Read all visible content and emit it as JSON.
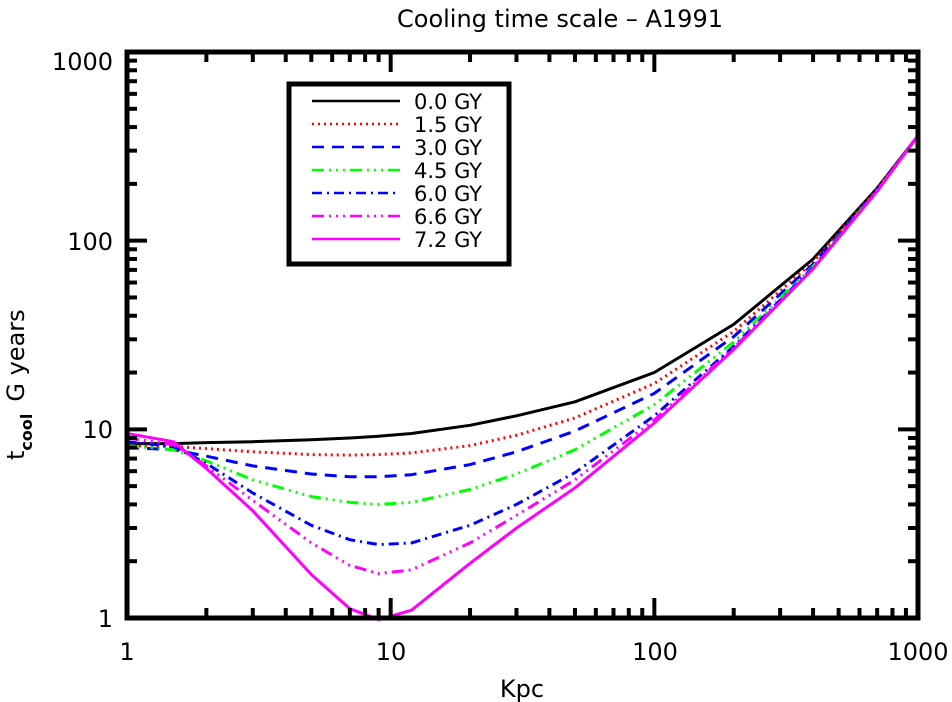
{
  "chart_data": {
    "type": "line",
    "title": "Cooling time scale  –  A1991",
    "xlabel": "Kpc",
    "ylabel": {
      "main": "t",
      "subscript": "cool",
      "suffix": "G years"
    },
    "xscale": "log",
    "yscale": "log",
    "xlim": [
      1,
      1000
    ],
    "ylim": [
      1,
      1000
    ],
    "grid": false,
    "legend_position": "upper-left (boxed)",
    "x_tick_labels": [
      "1",
      "10",
      "100",
      "1000"
    ],
    "y_tick_labels": [
      "1",
      "10",
      "100",
      "1000"
    ],
    "x": [
      1,
      1.5,
      2,
      3,
      5,
      7,
      9,
      12,
      20,
      30,
      50,
      100,
      200,
      400,
      700,
      1000
    ],
    "series": [
      {
        "name": "0.0 GY",
        "color": "#000000",
        "dash": "solid",
        "values": [
          8.4,
          8.4,
          8.5,
          8.6,
          8.8,
          9.0,
          9.2,
          9.5,
          10.5,
          11.8,
          14.0,
          20,
          36,
          80,
          190,
          360
        ]
      },
      {
        "name": "1.5 GY",
        "color": "#ff0000",
        "dash": "dotted",
        "values": [
          8.2,
          8.1,
          7.9,
          7.6,
          7.35,
          7.3,
          7.35,
          7.5,
          8.2,
          9.3,
          11.5,
          17.5,
          33,
          77,
          188,
          360
        ]
      },
      {
        "name": "3.0 GY",
        "color": "#0000ff",
        "dash": "dashed",
        "values": [
          8.0,
          7.8,
          7.2,
          6.4,
          5.8,
          5.6,
          5.6,
          5.75,
          6.5,
          7.6,
          9.8,
          15.5,
          31,
          75,
          186,
          360
        ]
      },
      {
        "name": "4.5 GY",
        "color": "#00ff00",
        "dash": "dash-dot-dot",
        "values": [
          8.2,
          7.8,
          6.8,
          5.4,
          4.4,
          4.1,
          4.0,
          4.1,
          4.8,
          5.8,
          7.8,
          13.5,
          29,
          73,
          185,
          360
        ]
      },
      {
        "name": "6.0 GY",
        "color": "#0000ff",
        "dash": "dash-dot",
        "values": [
          8.6,
          8.1,
          6.6,
          4.6,
          3.1,
          2.6,
          2.45,
          2.5,
          3.1,
          4.0,
          5.9,
          11.8,
          27.5,
          72,
          184,
          360
        ]
      },
      {
        "name": "6.6 GY",
        "color": "#ff00ff",
        "dash": "dash-dot-dot",
        "values": [
          9.0,
          8.3,
          6.4,
          4.2,
          2.5,
          1.9,
          1.72,
          1.8,
          2.5,
          3.5,
          5.4,
          11.2,
          27,
          71,
          184,
          360
        ]
      },
      {
        "name": "7.2 GY",
        "color": "#ff00ff",
        "dash": "solid",
        "values": [
          9.5,
          8.6,
          6.2,
          3.7,
          1.7,
          1.12,
          0.98,
          1.1,
          1.95,
          3.0,
          4.9,
          10.8,
          26.5,
          71,
          183,
          360
        ]
      }
    ]
  },
  "legend": {
    "items": [
      {
        "label": "0.0 GY"
      },
      {
        "label": "1.5 GY"
      },
      {
        "label": "3.0 GY"
      },
      {
        "label": "4.5 GY"
      },
      {
        "label": "6.0 GY"
      },
      {
        "label": "6.6 GY"
      },
      {
        "label": "7.2 GY"
      }
    ]
  }
}
